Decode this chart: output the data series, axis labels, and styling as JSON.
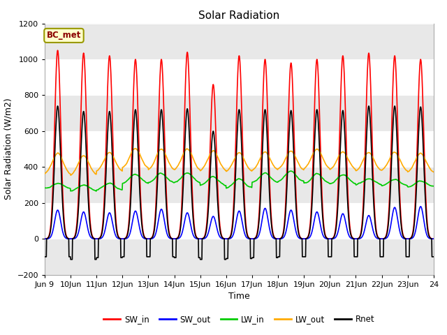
{
  "title": "Solar Radiation",
  "ylabel": "Solar Radiation (W/m2)",
  "xlabel": "Time",
  "ylim": [
    -200,
    1200
  ],
  "yticks": [
    -200,
    0,
    200,
    400,
    600,
    800,
    1000,
    1200
  ],
  "fig_bg_color": "#ffffff",
  "plot_bg_color": "#ffffff",
  "station_label": "BC_met",
  "legend_entries": [
    "SW_in",
    "SW_out",
    "LW_in",
    "LW_out",
    "Rnet"
  ],
  "line_colors": {
    "SW_in": "#ff0000",
    "SW_out": "#0000ff",
    "LW_in": "#00cc00",
    "LW_out": "#ffaa00",
    "Rnet": "#000000"
  },
  "line_widths": {
    "SW_in": 1.2,
    "SW_out": 1.2,
    "LW_in": 1.2,
    "LW_out": 1.2,
    "Rnet": 1.2
  },
  "num_days": 15,
  "start_day": 9,
  "end_day": 24,
  "hours_per_day": 24,
  "dt_hours": 0.25,
  "SW_in_peak": [
    1050,
    1035,
    1020,
    1000,
    1000,
    1040,
    860,
    1020,
    1000,
    980,
    1000,
    1020,
    1035,
    1020,
    1000
  ],
  "SW_out_peak": [
    160,
    150,
    145,
    155,
    165,
    145,
    125,
    155,
    170,
    160,
    150,
    140,
    130,
    175,
    180
  ],
  "LW_in_base": [
    280,
    265,
    270,
    305,
    310,
    310,
    295,
    280,
    310,
    315,
    305,
    305,
    300,
    295,
    290
  ],
  "LW_in_day_delta": [
    30,
    35,
    40,
    55,
    55,
    60,
    50,
    55,
    55,
    60,
    55,
    50,
    35,
    35,
    30
  ],
  "LW_out_base": [
    355,
    350,
    370,
    390,
    380,
    380,
    375,
    370,
    375,
    380,
    385,
    380,
    375,
    375,
    370
  ],
  "LW_out_day_delta": [
    120,
    115,
    110,
    115,
    120,
    120,
    115,
    110,
    110,
    110,
    115,
    105,
    105,
    105,
    105
  ],
  "Rnet_peak": [
    740,
    710,
    710,
    720,
    720,
    725,
    600,
    720,
    720,
    715,
    720,
    715,
    740,
    740,
    735
  ],
  "Rnet_night": [
    -100,
    -115,
    -105,
    -100,
    -100,
    -105,
    -115,
    -110,
    -105,
    -100,
    -100,
    -100,
    -100,
    -100,
    -100
  ],
  "noon_hour": 12.0,
  "sw_sigma": 2.8,
  "rnet_sigma": 2.8,
  "lw_sigma": 5.0
}
